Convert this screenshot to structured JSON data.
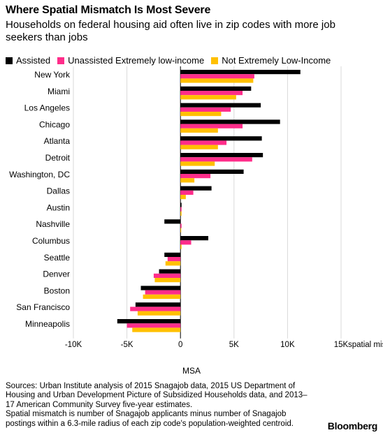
{
  "header": {
    "title": "Where Spatial Mismatch Is Most Severe",
    "subtitle": "Households on federal housing aid often live in zip codes with more job seekers than jobs"
  },
  "footer": {
    "sources": "Sources: Urban Institute analysis of 2015 Snagajob data, 2015 US Department of Housing and Urban Development Picture of Subsidized Households data, and 2013–17 American Community Survey five-year estimates.",
    "definition": "Spatial mismatch is number of Snagajob applicants minus number of Snagajob postings within a 6.3-mile radius of each zip code's population-weighted centroid.",
    "brand": "Bloomberg"
  },
  "chart_data": {
    "type": "bar",
    "orientation": "horizontal",
    "title": "Where Spatial Mismatch Is Most Severe",
    "subtitle": "Households on federal housing aid often live in zip codes with more job seekers than jobs",
    "xlabel": "spatial mismatch",
    "ylabel": "MSA",
    "xlim": [
      -10000,
      15000
    ],
    "x_ticks": [
      -10000,
      -5000,
      0,
      5000,
      10000,
      15000
    ],
    "x_tick_labels": [
      "-10K",
      "-5K",
      "0",
      "5K",
      "10K",
      "15K"
    ],
    "legend_position": "top-left",
    "grid": true,
    "categories": [
      "New York",
      "Miami",
      "Los Angeles",
      "Chicago",
      "Atlanta",
      "Detroit",
      "Washington, DC",
      "Dallas",
      "Austin",
      "Nashville",
      "Columbus",
      "Seattle",
      "Denver",
      "Boston",
      "San Francisco",
      "Minneapolis"
    ],
    "series": [
      {
        "name": "Assisted",
        "color": "#000000",
        "values": [
          11200,
          6600,
          7500,
          9300,
          7600,
          7700,
          5900,
          2900,
          100,
          -1500,
          2600,
          -1500,
          -2000,
          -3700,
          -4200,
          -5900
        ]
      },
      {
        "name": "Unassisted Extremely low-income",
        "color": "#ff2d8a",
        "values": [
          6900,
          5800,
          4700,
          5800,
          4300,
          6700,
          2800,
          1200,
          100,
          100,
          1000,
          -1200,
          -2500,
          -3300,
          -4700,
          -5000
        ]
      },
      {
        "name": "Not Extremely Low-Income",
        "color": "#ffc000",
        "values": [
          6800,
          5200,
          3800,
          3500,
          3500,
          3200,
          1300,
          500,
          100,
          50,
          100,
          -1400,
          -2400,
          -3500,
          -4000,
          -4500
        ]
      }
    ]
  }
}
